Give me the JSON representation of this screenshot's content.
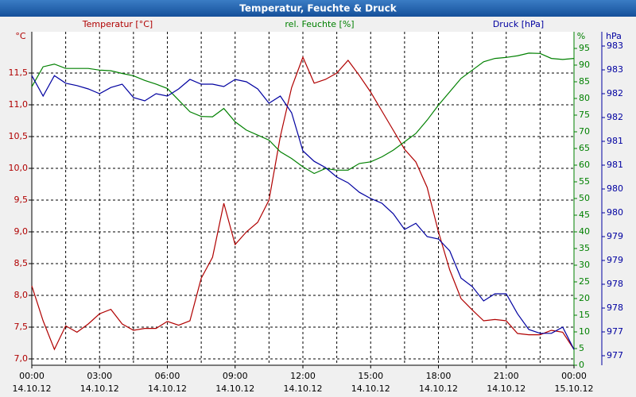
{
  "chart_data": {
    "type": "line",
    "title": "Temperatur, Feuchte & Druck",
    "y_unit": "°C",
    "y2_unit": "%",
    "y3_unit": "hPa",
    "y_label": "Temperatur [°C]",
    "y2_label": "rel. Feuchte [%]",
    "y3_label": "Druck [hPa]",
    "xlim": [
      0,
      24
    ],
    "xticks": [
      {
        "value": 0,
        "label": "00:00",
        "date": "14.10.12"
      },
      {
        "value": 3,
        "label": "03:00",
        "date": "14.10.12"
      },
      {
        "value": 6,
        "label": "06:00",
        "date": "14.10.12"
      },
      {
        "value": 9,
        "label": "09:00",
        "date": "14.10.12"
      },
      {
        "value": 12,
        "label": "12:00",
        "date": "14.10.12"
      },
      {
        "value": 15,
        "label": "15:00",
        "date": "14.10.12"
      },
      {
        "value": 18,
        "label": "18:00",
        "date": "14.10.12"
      },
      {
        "value": 21,
        "label": "21:00",
        "date": "14.10.12"
      },
      {
        "value": 24,
        "label": "00:00",
        "date": "15.10.12"
      }
    ],
    "ylim": [
      6.9,
      12.15
    ],
    "yticks": [
      {
        "value": 7,
        "label": "7,0"
      },
      {
        "value": 7.5,
        "label": "7,5"
      },
      {
        "value": 8,
        "label": "8,0"
      },
      {
        "value": 8.5,
        "label": "8,5"
      },
      {
        "value": 9,
        "label": "9,0"
      },
      {
        "value": 9.5,
        "label": "9,5"
      },
      {
        "value": 10,
        "label": "10,0"
      },
      {
        "value": 10.5,
        "label": "10,5"
      },
      {
        "value": 11,
        "label": "11,0"
      },
      {
        "value": 11.5,
        "label": "11,5"
      }
    ],
    "y2lim": [
      0,
      100
    ],
    "y2ticks": [
      0,
      5,
      10,
      15,
      20,
      25,
      30,
      35,
      40,
      45,
      50,
      55,
      60,
      65,
      70,
      75,
      80,
      85,
      90,
      95
    ],
    "y3lim": [
      976.3,
      983.3
    ],
    "y3ticks": [
      {
        "value": 976.5,
        "label": "977"
      },
      {
        "value": 977,
        "label": "977"
      },
      {
        "value": 977.5,
        "label": "978"
      },
      {
        "value": 978,
        "label": "978"
      },
      {
        "value": 978.5,
        "label": "979"
      },
      {
        "value": 979,
        "label": "979"
      },
      {
        "value": 979.5,
        "label": "980"
      },
      {
        "value": 980,
        "label": "980"
      },
      {
        "value": 980.5,
        "label": "981"
      },
      {
        "value": 981,
        "label": "981"
      },
      {
        "value": 981.5,
        "label": "982"
      },
      {
        "value": 982,
        "label": "982"
      },
      {
        "value": 982.5,
        "label": "983"
      },
      {
        "value": 983,
        "label": "983"
      }
    ],
    "grid": true,
    "x": [
      0,
      0.5,
      1,
      1.5,
      2,
      2.5,
      3,
      3.5,
      4,
      4.5,
      5,
      5.5,
      6,
      6.5,
      7,
      7.5,
      8,
      8.5,
      9,
      9.5,
      10,
      10.5,
      11,
      11.5,
      12,
      12.5,
      13,
      13.5,
      14,
      14.5,
      15,
      15.5,
      16,
      16.5,
      17,
      17.5,
      18,
      18.5,
      19,
      19.5,
      20,
      20.5,
      21,
      21.5,
      22,
      22.5,
      23,
      23.5,
      24
    ],
    "series": [
      {
        "name": "Temperatur [°C]",
        "color": "#b00000",
        "axis": "y",
        "values": [
          8.15,
          7.6,
          7.15,
          7.52,
          7.42,
          7.55,
          7.71,
          7.78,
          7.55,
          7.45,
          7.48,
          7.48,
          7.59,
          7.53,
          7.6,
          8.27,
          8.6,
          9.45,
          8.8,
          9.0,
          9.15,
          9.5,
          10.5,
          11.27,
          11.75,
          11.34,
          11.4,
          11.5,
          11.7,
          11.46,
          11.2,
          10.9,
          10.6,
          10.3,
          10.1,
          9.7,
          9.0,
          8.4,
          7.95,
          7.77,
          7.6,
          7.62,
          7.6,
          7.4,
          7.38,
          7.38,
          7.45,
          7.42,
          7.15
        ]
      },
      {
        "name": "rel. Feuchte [%]",
        "color": "#008000",
        "axis": "y2",
        "values": [
          83.5,
          89.5,
          90.3,
          89,
          89,
          89,
          88.5,
          88.3,
          87.5,
          86.8,
          85.4,
          84.3,
          83,
          79.5,
          76,
          74.6,
          74.5,
          77,
          73,
          70.5,
          69,
          67.5,
          64,
          62,
          59.5,
          57.5,
          59,
          58.5,
          58.5,
          60.5,
          61,
          62.5,
          64.5,
          67,
          69.5,
          73.5,
          78,
          82,
          86,
          88.5,
          91,
          92,
          92.3,
          92.8,
          93.6,
          93.5,
          92,
          91.7,
          92
        ]
      },
      {
        "name": "Druck [hPa]",
        "color": "#0000a0",
        "axis": "y3",
        "values": [
          982.38,
          981.95,
          982.38,
          982.22,
          982.17,
          982.1,
          982.0,
          982.13,
          982.2,
          981.92,
          981.85,
          982.0,
          981.95,
          982.1,
          982.3,
          982.2,
          982.2,
          982.15,
          982.3,
          982.25,
          982.1,
          981.8,
          981.95,
          981.6,
          980.8,
          980.58,
          980.45,
          980.25,
          980.13,
          979.93,
          979.8,
          979.7,
          979.48,
          979.15,
          979.28,
          979.0,
          978.95,
          978.7,
          978.13,
          977.95,
          977.65,
          977.8,
          977.8,
          977.38,
          977.05,
          976.97,
          976.97,
          977.1,
          976.63
        ]
      }
    ]
  }
}
